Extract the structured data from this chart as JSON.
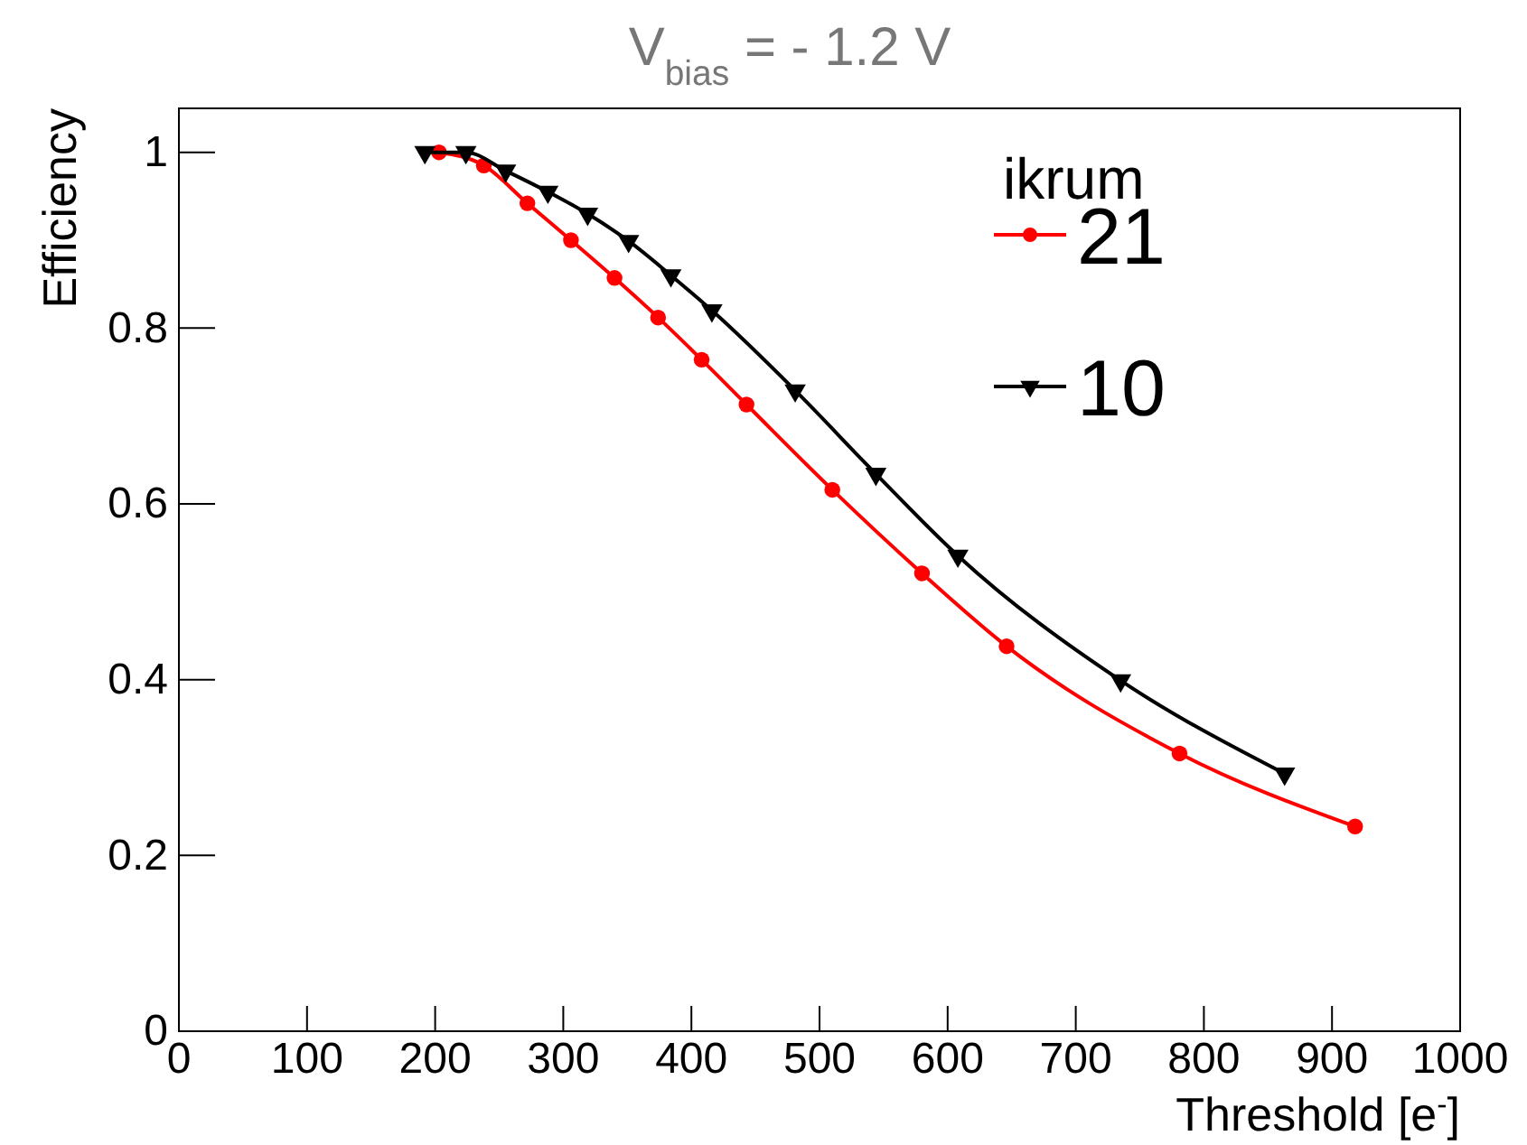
{
  "chart_data": {
    "type": "line",
    "title": "V$_{bias}$ = - 1.2 V",
    "xlabel": "Threshold [e$^{-}$]",
    "ylabel": "Efficiency",
    "legend_title": "ikrum",
    "legend": "top right",
    "xlim": [
      0,
      1000
    ],
    "xticks": [
      0,
      100,
      200,
      300,
      400,
      500,
      600,
      700,
      800,
      900,
      1000
    ],
    "ylim": [
      0,
      1.05
    ],
    "yticks": [
      0,
      0.2,
      0.4,
      0.6,
      0.8,
      1
    ],
    "series": [
      {
        "name": "21",
        "color": "#ff0000",
        "marker": "circle",
        "x": [
          203,
          238,
          272,
          306,
          340,
          374,
          408,
          443,
          510,
          580,
          646,
          781,
          918
        ],
        "values": [
          1.0,
          0.985,
          0.942,
          0.9,
          0.857,
          0.812,
          0.764,
          0.713,
          0.616,
          0.521,
          0.438,
          0.316,
          0.233
        ]
      },
      {
        "name": "10",
        "color": "#000000",
        "marker": "triangle",
        "x": [
          192,
          224,
          255,
          288,
          319,
          351,
          384,
          416,
          481,
          544,
          608,
          735,
          863
        ],
        "values": [
          1.0,
          1.0,
          0.979,
          0.955,
          0.93,
          0.899,
          0.86,
          0.82,
          0.729,
          0.634,
          0.541,
          0.399,
          0.293
        ]
      }
    ]
  }
}
